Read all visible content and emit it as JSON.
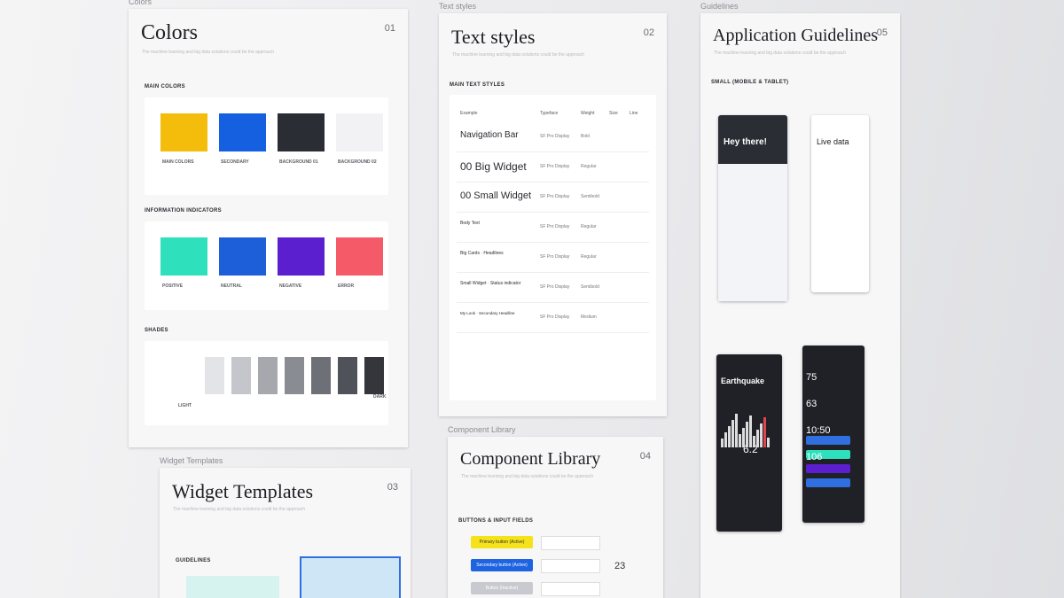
{
  "frames": [
    {
      "label": "Colors",
      "title": "Colors",
      "number": "01",
      "subtitle": "The machine learning and big data solutions could be the approach"
    },
    {
      "label": "Text styles",
      "title": "Text styles",
      "number": "02",
      "subtitle": "The machine learning and big data solutions could be the approach"
    },
    {
      "label": "Guidelines",
      "title": "Application Guidelines",
      "number": "05",
      "subtitle": "The machine learning and big data solutions could be the approach"
    },
    {
      "label": "Widget Templates",
      "title": "Widget Templates",
      "number": "03",
      "subtitle": "The machine learning and big data solutions could be the approach"
    },
    {
      "label": "Component Library",
      "title": "Component Library",
      "number": "04",
      "subtitle": "The machine learning and big data solutions could be the approach"
    }
  ],
  "colors": {
    "sections": [
      {
        "title": "MAIN COLORS",
        "swatches": [
          {
            "name": "MAIN COLORS",
            "color": "#f4bd0c"
          },
          {
            "name": "SECONDARY",
            "color": "#1560e0"
          },
          {
            "name": "BACKGROUND 01",
            "color": "#2a2d33"
          },
          {
            "name": "BACKGROUND 02",
            "color": "#f2f2f4"
          }
        ]
      },
      {
        "title": "INFORMATION INDICATORS",
        "swatches": [
          {
            "name": "POSITIVE",
            "color": "#2fe0bd"
          },
          {
            "name": "NEUTRAL",
            "color": "#1c5fd8"
          },
          {
            "name": "NEGATIVE",
            "color": "#5b1fd0"
          },
          {
            "name": "ERROR",
            "color": "#f55a68"
          }
        ]
      },
      {
        "title": "SHADES",
        "light": "LIGHT",
        "dark": "DARK",
        "shades": [
          "#e3e4e8",
          "#c4c6cb",
          "#a6a8ae",
          "#8a8c93",
          "#6d7077",
          "#4f5258",
          "#34363b"
        ]
      }
    ]
  },
  "text_styles": {
    "section": "MAIN TEXT STYLES",
    "columns": [
      "Example",
      "Typeface",
      "Weight",
      "Size",
      "Line"
    ],
    "rows": [
      [
        "Navigation Bar",
        "SF Pro Display",
        "Bold"
      ],
      [
        "00 Big Widget",
        "SF Pro Display",
        "Regular"
      ],
      [
        "00 Small Widget",
        "SF Pro Display",
        "Semibold"
      ],
      [
        "Body Text",
        "SF Pro Display",
        "Regular"
      ],
      [
        "Big Cards · Headlines",
        "SF Pro Display",
        "Regular"
      ],
      [
        "Small Widget · Status indicator",
        "SF Pro Display",
        "Semibold"
      ],
      [
        "My Look · Secondary Headline",
        "SF Pro Display",
        "Medium"
      ]
    ]
  },
  "guidelines": {
    "section": "SMALL (MOBILE & TABLET)",
    "screens": [
      "Hey there!",
      "Live data",
      "Earthquake"
    ],
    "quake_value": "6.2",
    "stats": [
      "75",
      "63",
      "10:50",
      "106"
    ]
  },
  "widgets": {
    "section": "GUIDELINES"
  },
  "components": {
    "section": "BUTTONS & INPUT FIELDS",
    "buttons": [
      {
        "label": "Primary button (Active)",
        "color": "#f5e21a",
        "text": "#333"
      },
      {
        "label": "Secondary button (Active)",
        "color": "#1e63e0",
        "text": "#fff"
      },
      {
        "label": "Button (Inactive)",
        "color": "#c9cacf",
        "text": "#fff"
      }
    ],
    "number": "23"
  }
}
